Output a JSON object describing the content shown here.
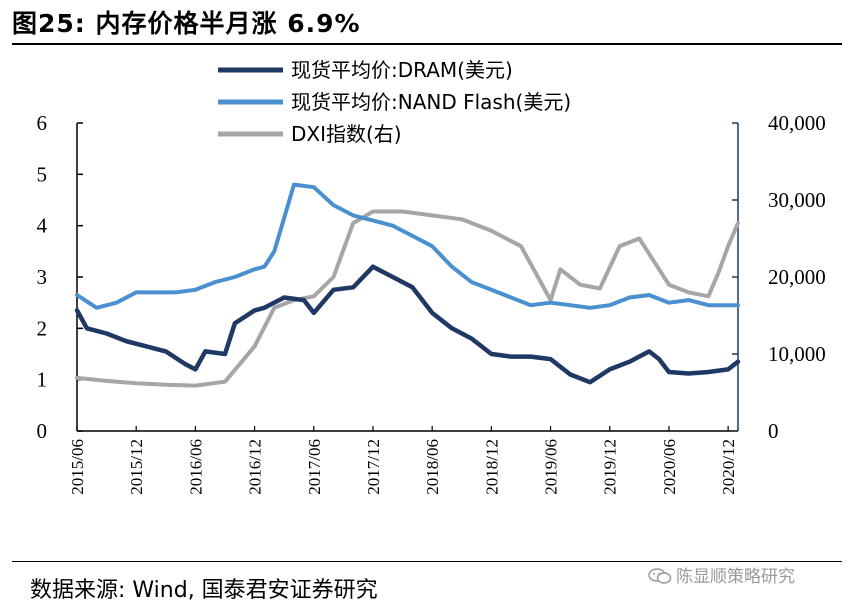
{
  "figure": {
    "title": "图25: 内存价格半月涨 6.9%",
    "source": "数据来源: Wind, 国泰君安证券研究",
    "watermark": "陈显顺策略研究"
  },
  "colors": {
    "dram": "#1f3864",
    "nand": "#4a90d0",
    "dxi": "#a6a6a6",
    "axis": "#000000",
    "right_axis": "#1f3864"
  },
  "icons": {
    "watermark": "wechat-icon"
  },
  "chart_data": {
    "type": "line",
    "title": "",
    "xlabel": "",
    "ylabel": "",
    "legend_position": "top-center",
    "grid": false,
    "x_tick_labels": [
      "2015/06",
      "2015/12",
      "2016/06",
      "2016/12",
      "2017/06",
      "2017/12",
      "2018/06",
      "2018/12",
      "2019/06",
      "2019/12",
      "2020/06",
      "2020/12"
    ],
    "x_range": [
      "2015/06",
      "2021/01"
    ],
    "y_left": {
      "ylim": [
        0,
        6
      ],
      "ticks": [
        "0",
        "1",
        "2",
        "3",
        "4",
        "5",
        "6"
      ]
    },
    "y_right": {
      "ylim": [
        0,
        40000
      ],
      "ticks": [
        "0",
        "10,000",
        "20,000",
        "30,000",
        "40,000"
      ]
    },
    "series": [
      {
        "name": "现货平均价:DRAM(美元)",
        "axis": "left",
        "x": [
          "2015/06",
          "2015/07",
          "2015/09",
          "2015/11",
          "2016/01",
          "2016/03",
          "2016/05",
          "2016/06",
          "2016/07",
          "2016/09",
          "2016/10",
          "2016/12",
          "2017/01",
          "2017/03",
          "2017/05",
          "2017/06",
          "2017/08",
          "2017/10",
          "2017/12",
          "2018/02",
          "2018/04",
          "2018/06",
          "2018/08",
          "2018/10",
          "2018/12",
          "2019/02",
          "2019/04",
          "2019/06",
          "2019/08",
          "2019/10",
          "2019/12",
          "2020/02",
          "2020/04",
          "2020/05",
          "2020/06",
          "2020/08",
          "2020/10",
          "2020/12",
          "2021/01"
        ],
        "values": [
          2.35,
          2.0,
          1.9,
          1.75,
          1.65,
          1.55,
          1.3,
          1.2,
          1.55,
          1.5,
          2.1,
          2.35,
          2.4,
          2.6,
          2.55,
          2.3,
          2.75,
          2.8,
          3.2,
          3.0,
          2.8,
          2.3,
          2.0,
          1.8,
          1.5,
          1.45,
          1.45,
          1.4,
          1.1,
          0.95,
          1.2,
          1.35,
          1.55,
          1.4,
          1.15,
          1.12,
          1.15,
          1.2,
          1.35
        ]
      },
      {
        "name": "现货平均价:NAND Flash(美元)",
        "axis": "left",
        "x": [
          "2015/06",
          "2015/08",
          "2015/10",
          "2015/12",
          "2016/02",
          "2016/04",
          "2016/06",
          "2016/08",
          "2016/10",
          "2016/12",
          "2017/01",
          "2017/02",
          "2017/04",
          "2017/06",
          "2017/08",
          "2017/10",
          "2017/12",
          "2018/02",
          "2018/04",
          "2018/06",
          "2018/08",
          "2018/10",
          "2018/12",
          "2019/02",
          "2019/04",
          "2019/06",
          "2019/08",
          "2019/10",
          "2019/12",
          "2020/02",
          "2020/04",
          "2020/06",
          "2020/08",
          "2020/10",
          "2020/12",
          "2021/01"
        ],
        "values": [
          2.65,
          2.4,
          2.5,
          2.7,
          2.7,
          2.7,
          2.75,
          2.9,
          3.0,
          3.15,
          3.2,
          3.5,
          4.8,
          4.75,
          4.4,
          4.2,
          4.1,
          4.0,
          3.8,
          3.6,
          3.2,
          2.9,
          2.75,
          2.6,
          2.45,
          2.5,
          2.45,
          2.4,
          2.45,
          2.6,
          2.65,
          2.5,
          2.55,
          2.45,
          2.45,
          2.45
        ]
      },
      {
        "name": "DXI指数(右)",
        "axis": "right",
        "x": [
          "2015/06",
          "2015/09",
          "2015/12",
          "2016/03",
          "2016/06",
          "2016/09",
          "2016/12",
          "2017/02",
          "2017/04",
          "2017/06",
          "2017/08",
          "2017/10",
          "2017/12",
          "2018/03",
          "2018/06",
          "2018/09",
          "2018/12",
          "2019/03",
          "2019/06",
          "2019/07",
          "2019/09",
          "2019/11",
          "2020/01",
          "2020/03",
          "2020/05",
          "2020/06",
          "2020/08",
          "2020/10",
          "2020/11",
          "2020/12",
          "2021/01"
        ],
        "values": [
          6900,
          6500,
          6200,
          6000,
          5900,
          6400,
          11000,
          16000,
          17000,
          17500,
          20000,
          27000,
          28500,
          28500,
          28000,
          27500,
          26000,
          24000,
          17000,
          21000,
          19000,
          18500,
          24000,
          25000,
          21000,
          19000,
          18000,
          17500,
          20500,
          24000,
          27000
        ]
      }
    ]
  }
}
